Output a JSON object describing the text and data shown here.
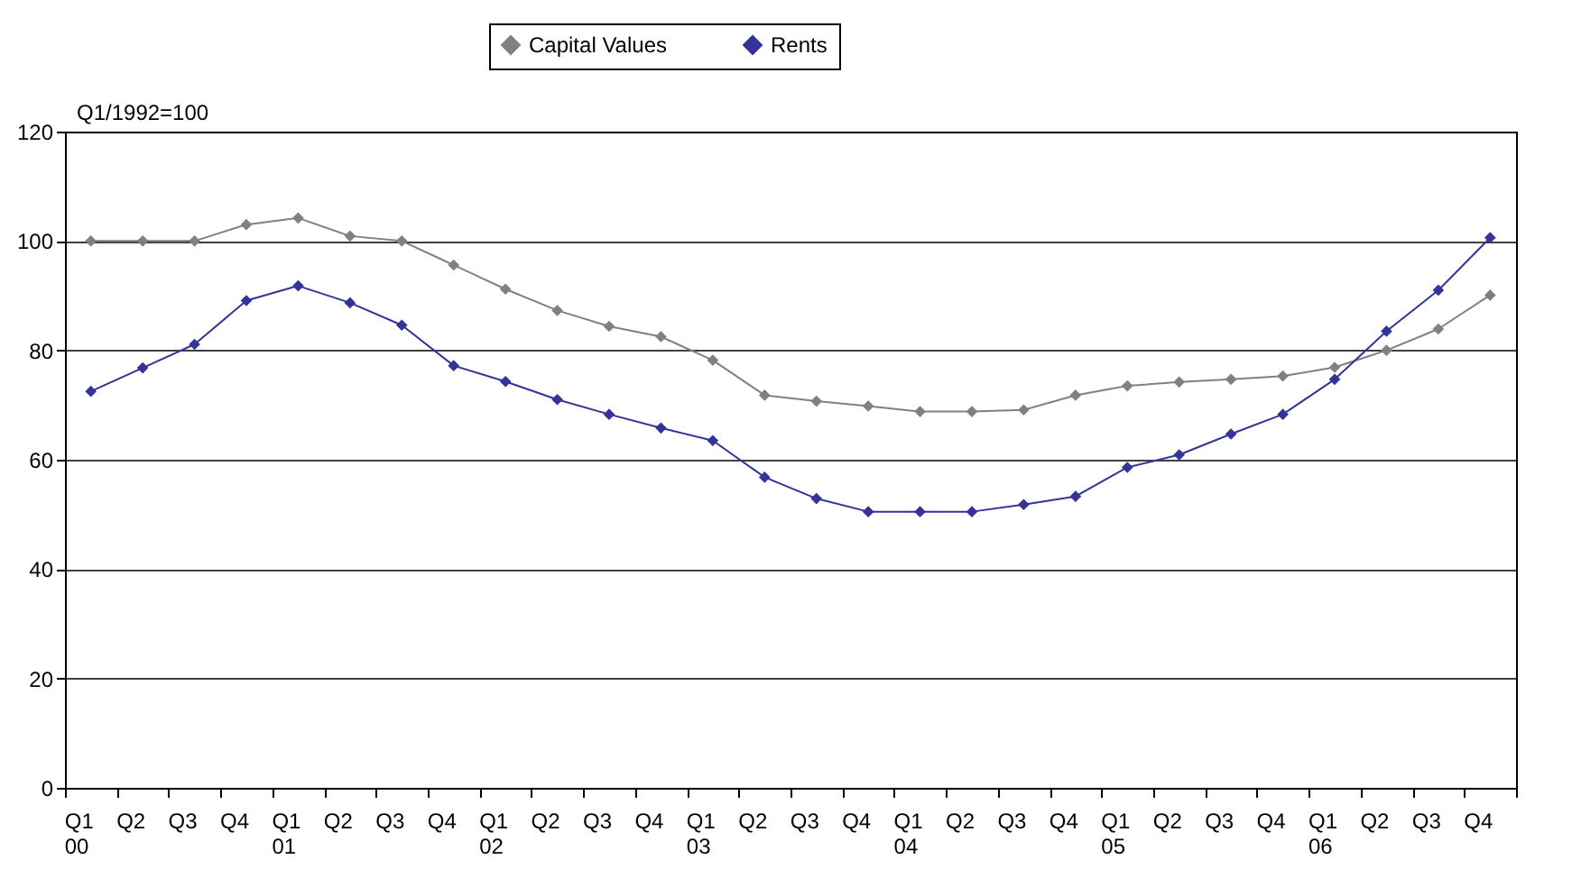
{
  "chart_data": {
    "type": "line",
    "ylabel": "Q1/1992=100",
    "categories": [
      "Q1\n00",
      "Q2",
      "Q3",
      "Q4",
      "Q1\n01",
      "Q2",
      "Q3",
      "Q4",
      "Q1\n02",
      "Q2",
      "Q3",
      "Q4",
      "Q1\n03",
      "Q2",
      "Q3",
      "Q4",
      "Q1\n04",
      "Q2",
      "Q3",
      "Q4",
      "Q1\n05",
      "Q2",
      "Q3",
      "Q4",
      "Q1\n06",
      "Q2",
      "Q3",
      "Q4"
    ],
    "series": [
      {
        "name": "Capital Values",
        "color": "#808080",
        "values": [
          100,
          100,
          100,
          103,
          104.2,
          100.9,
          100,
          95.6,
          91.2,
          87.3,
          84.4,
          82.5,
          78.2,
          71.8,
          70.7,
          69.8,
          68.8,
          68.8,
          69.1,
          71.8,
          73.5,
          74.2,
          74.7,
          75.3,
          76.9,
          80,
          83.9,
          90.1
        ]
      },
      {
        "name": "Rents",
        "color": "#333399",
        "values": [
          72.5,
          76.8,
          81.1,
          89.1,
          91.8,
          88.7,
          84.6,
          77.2,
          74.3,
          71.0,
          68.3,
          65.8,
          63.5,
          56.8,
          52.9,
          50.5,
          50.5,
          50.5,
          51.8,
          53.3,
          58.6,
          60.9,
          64.7,
          68.3,
          74.7,
          83.5,
          91.0,
          100.6
        ]
      }
    ],
    "ylim": [
      0,
      120
    ],
    "yticks": [
      0,
      20,
      40,
      60,
      80,
      100,
      120
    ],
    "grid": "y",
    "legend": "top",
    "marker": "diamond",
    "line_style": "solid"
  }
}
